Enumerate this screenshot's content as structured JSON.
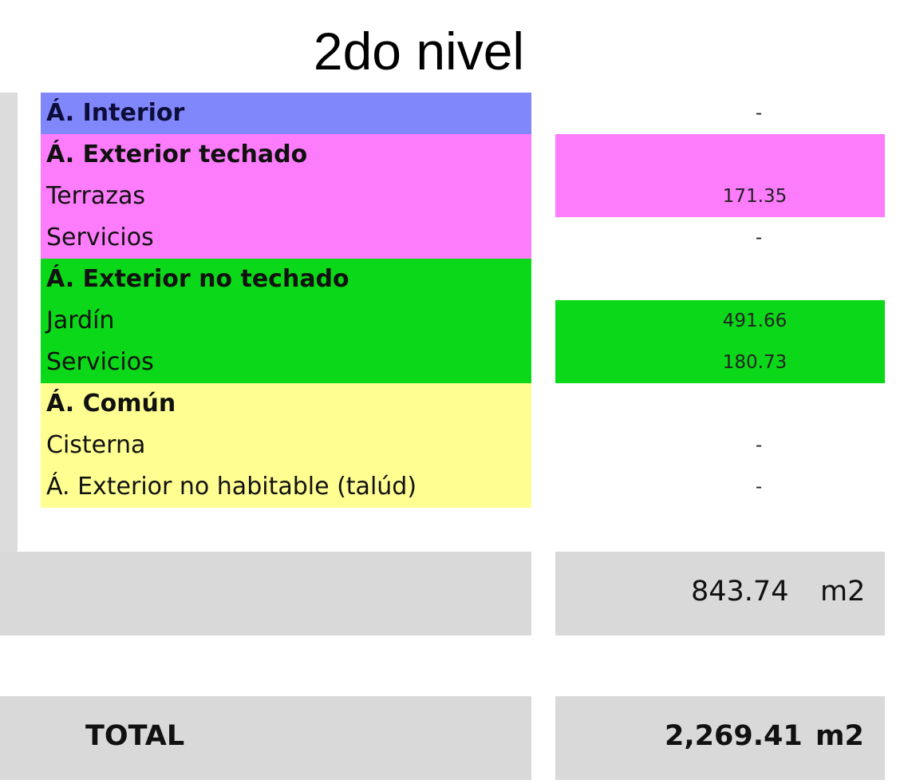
{
  "title": "2do nivel",
  "colors": {
    "interior": "#8087fb",
    "exterior_techado": "#fd7cfb",
    "exterior_no_techado": "#0bd818",
    "comun": "#fefe91",
    "gray": "#d9d9d9"
  },
  "rows": [
    {
      "label": "Á. Interior",
      "value": "-"
    },
    {
      "label": "Á. Exterior techado",
      "value": ""
    },
    {
      "label": "Terrazas",
      "value": "171.35"
    },
    {
      "label": "Servicios",
      "value": "-"
    },
    {
      "label": "Á. Exterior no techado",
      "value": ""
    },
    {
      "label": "Jardín",
      "value": "491.66"
    },
    {
      "label": "Servicios",
      "value": "180.73"
    },
    {
      "label": "Á. Común",
      "value": ""
    },
    {
      "label": "Cisterna",
      "value": "-"
    },
    {
      "label": "Á. Exterior no habitable (talúd)",
      "value": "-"
    }
  ],
  "subtotal": {
    "value": "843.74",
    "unit": "m2"
  },
  "total": {
    "label": "TOTAL",
    "value": "2,269.41",
    "unit": "m2"
  }
}
